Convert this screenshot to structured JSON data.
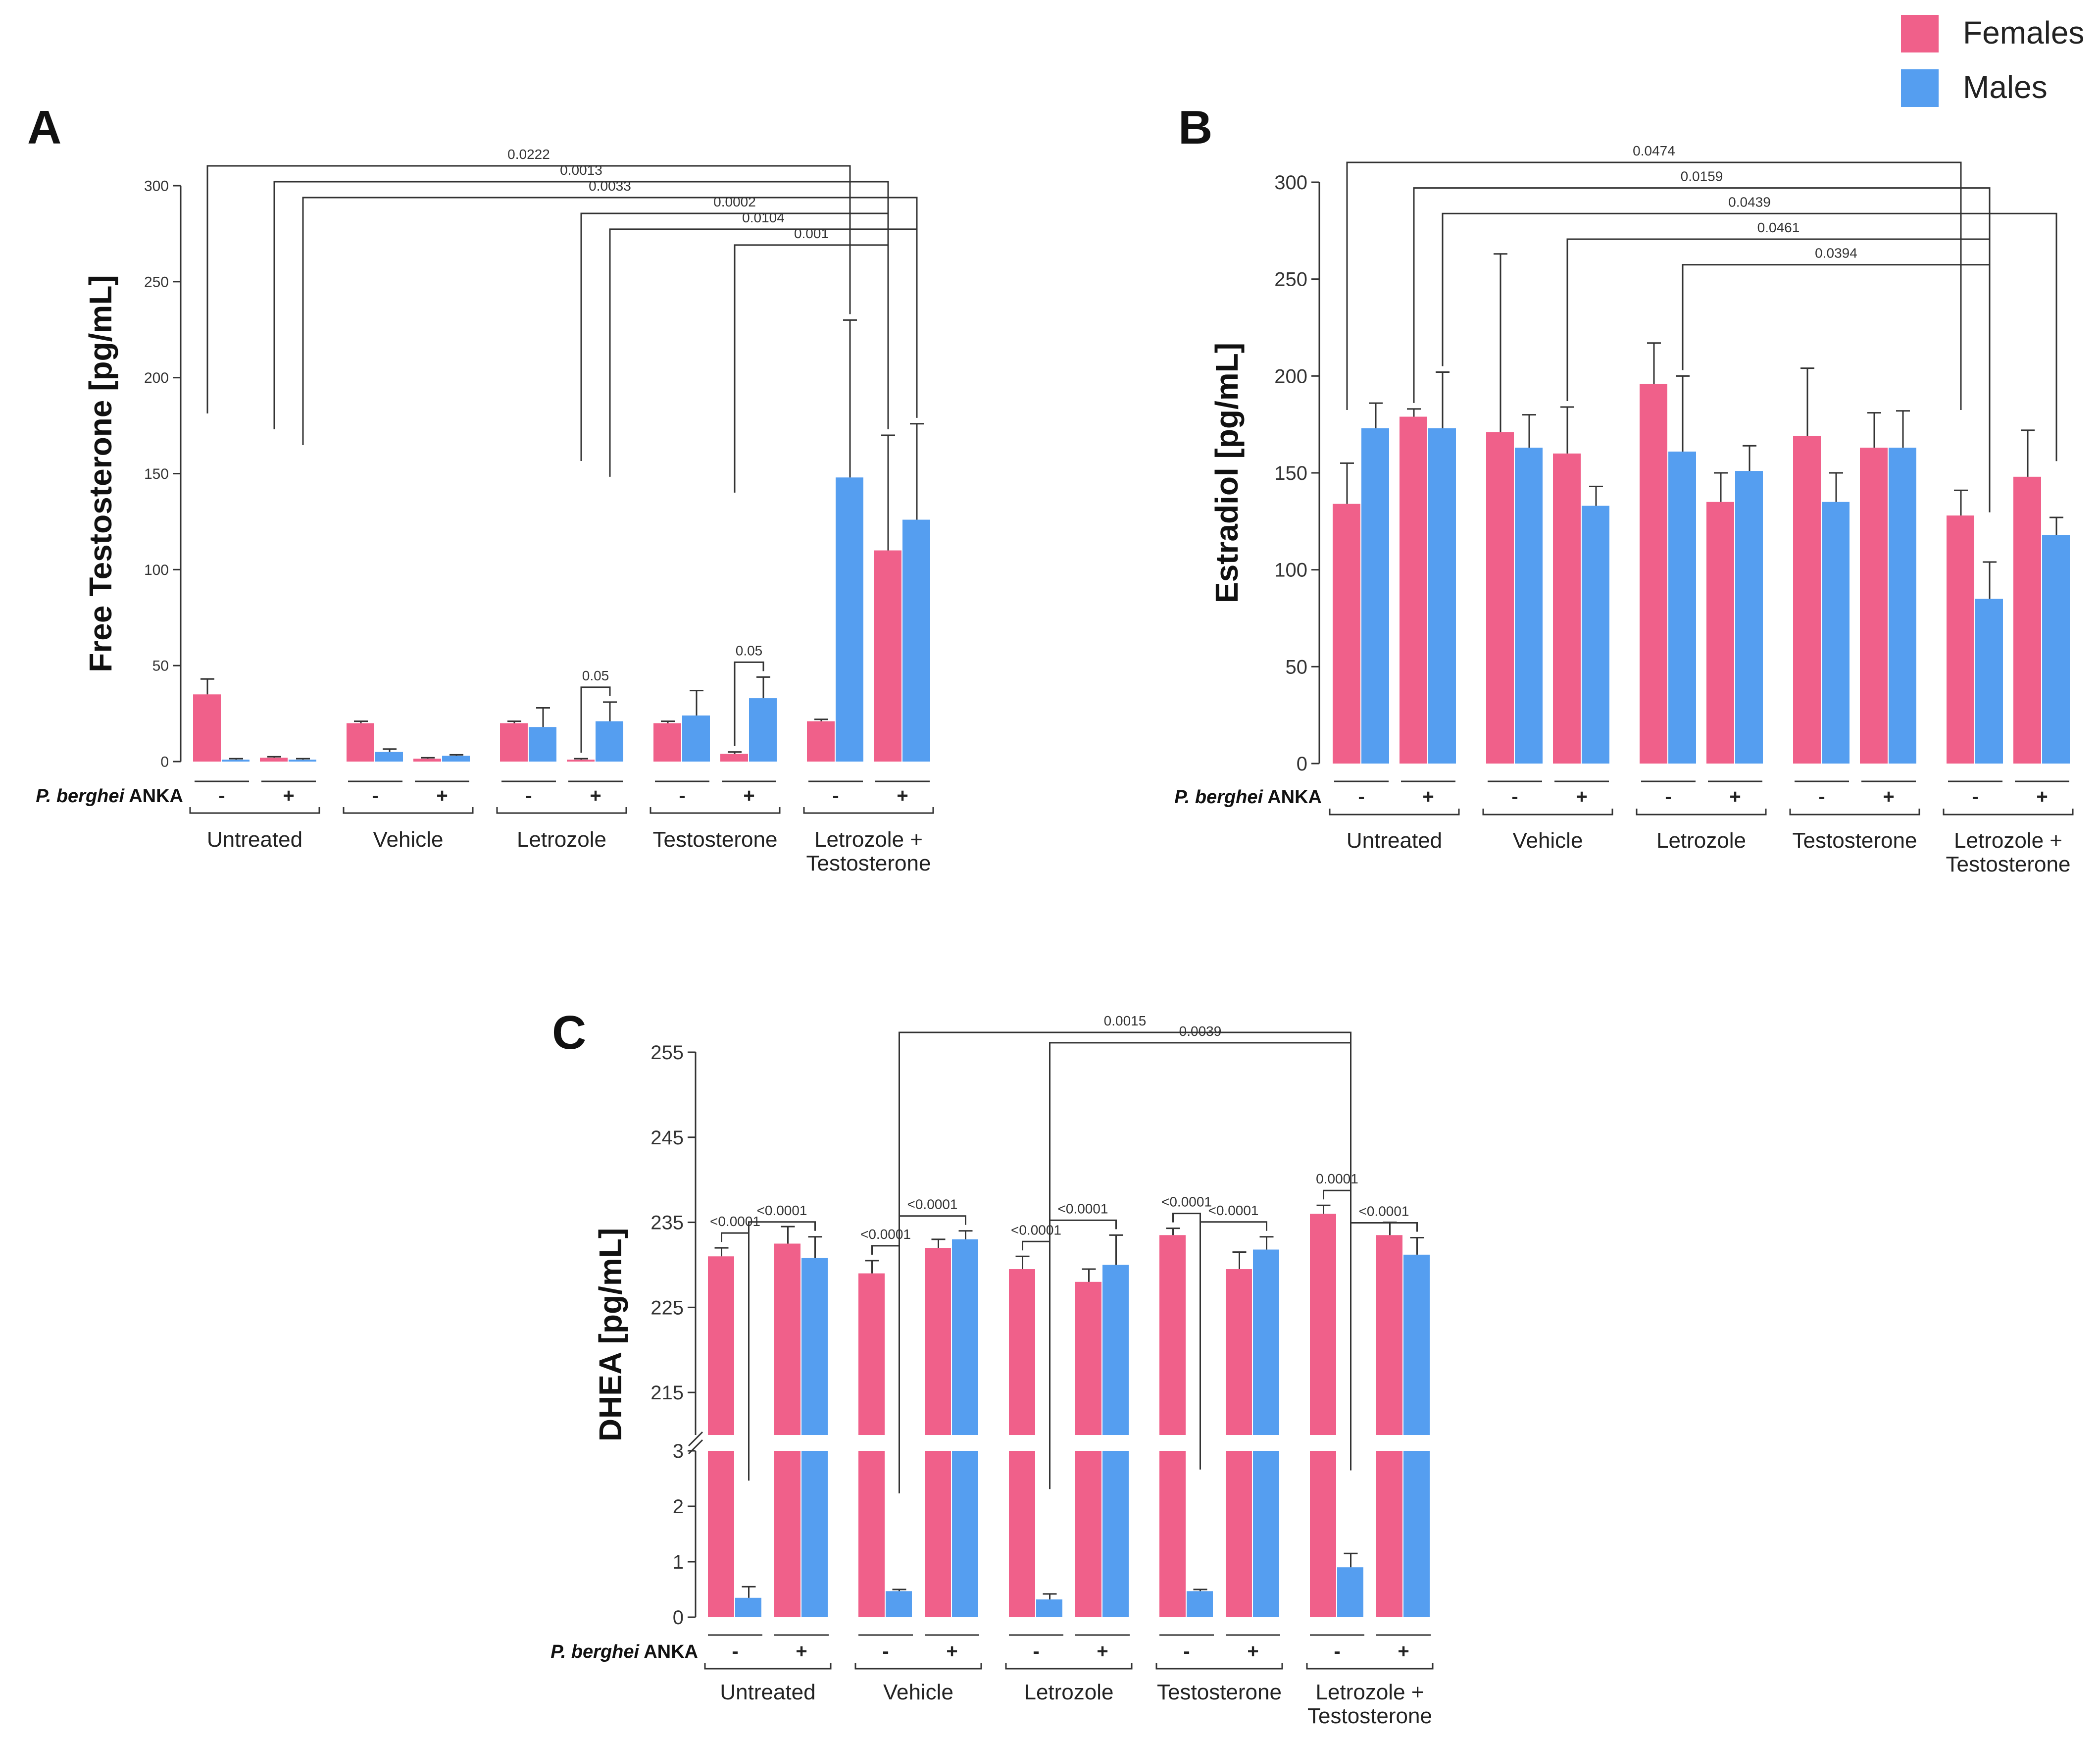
{
  "legend": {
    "entries": [
      {
        "name": "Females",
        "color": "#F0608A"
      },
      {
        "name": "Males",
        "color": "#559EF0"
      }
    ]
  },
  "infection_label": {
    "italic": "P. berghei",
    "normal": " ANKA"
  },
  "chart_data": [
    {
      "type": "bar",
      "panel": "A",
      "ylabel": "Free Testosterone [pg/mL]",
      "ylim": [
        0,
        300
      ],
      "yticks": [
        0,
        50,
        100,
        150,
        200,
        250,
        300
      ],
      "groups": [
        "Untreated",
        "Vehicle",
        "Letrozole",
        "Testosterone",
        "Letrozole +\nTestosterone"
      ],
      "infection_signs": [
        "-",
        "+"
      ],
      "series": [
        {
          "name": "Females",
          "values": [
            35,
            2,
            20,
            1.5,
            20,
            1,
            20,
            4,
            21,
            110
          ],
          "errors": [
            8,
            0.5,
            1,
            0.5,
            1,
            0.5,
            1,
            1,
            1,
            60
          ]
        },
        {
          "name": "Males",
          "values": [
            1,
            1,
            5,
            3,
            18,
            21,
            24,
            33,
            148,
            126
          ],
          "errors": [
            0.5,
            0.5,
            1.5,
            0.5,
            10,
            10,
            13,
            11,
            82,
            50
          ]
        }
      ],
      "comparisons": [
        {
          "p": "0.0222",
          "from": [
            0,
            0
          ],
          "to": [
            8,
            1
          ]
        },
        {
          "p": "0.0013",
          "from": [
            1,
            0
          ],
          "to": [
            9,
            0
          ]
        },
        {
          "p": "0.0033",
          "from": [
            1,
            1
          ],
          "to": [
            9,
            1
          ]
        },
        {
          "p": "0.0002",
          "from": [
            5,
            0
          ],
          "to": [
            9,
            0
          ]
        },
        {
          "p": "0.0104",
          "from": [
            5,
            1
          ],
          "to": [
            9,
            1
          ]
        },
        {
          "p": "0.001",
          "from": [
            7,
            0
          ],
          "to": [
            9,
            0
          ]
        },
        {
          "p": "0.05",
          "from": [
            5,
            0
          ],
          "to": [
            5,
            1
          ]
        },
        {
          "p": "0.05",
          "from": [
            7,
            0
          ],
          "to": [
            7,
            1
          ]
        }
      ]
    },
    {
      "type": "bar",
      "panel": "B",
      "ylabel": "Estradiol [pg/mL]",
      "ylim": [
        0,
        300
      ],
      "yticks": [
        0,
        50,
        100,
        150,
        200,
        250,
        300
      ],
      "groups": [
        "Untreated",
        "Vehicle",
        "Letrozole",
        "Testosterone",
        "Letrozole +\nTestosterone"
      ],
      "infection_signs": [
        "-",
        "+"
      ],
      "series": [
        {
          "name": "Females",
          "values": [
            134,
            179,
            171,
            160,
            196,
            135,
            169,
            163,
            128,
            148
          ],
          "errors": [
            21,
            4,
            92,
            24,
            21,
            15,
            35,
            18,
            13,
            24
          ]
        },
        {
          "name": "Males",
          "values": [
            173,
            173,
            163,
            133,
            161,
            151,
            135,
            163,
            85,
            118
          ],
          "errors": [
            13,
            29,
            17,
            10,
            39,
            13,
            15,
            19,
            19,
            9
          ]
        }
      ],
      "comparisons": [
        {
          "p": "0.0474",
          "from": [
            0,
            0
          ],
          "to": [
            8,
            0
          ]
        },
        {
          "p": "0.0159",
          "from": [
            1,
            0
          ],
          "to": [
            8,
            1
          ]
        },
        {
          "p": "0.0439",
          "from": [
            1,
            1
          ],
          "to": [
            9,
            1
          ]
        },
        {
          "p": "0.0461",
          "from": [
            3,
            0
          ],
          "to": [
            8,
            1
          ]
        },
        {
          "p": "0.0394",
          "from": [
            4,
            1
          ],
          "to": [
            8,
            1
          ]
        }
      ]
    },
    {
      "type": "bar",
      "panel": "C",
      "ylabel": "DHEA [pg/mL]",
      "broken_axis": true,
      "ylim_lower": [
        0,
        3
      ],
      "ylim_upper": [
        210,
        255
      ],
      "yticks_lower": [
        0,
        1,
        2,
        3
      ],
      "yticks_upper": [
        215,
        225,
        235,
        245,
        255
      ],
      "groups": [
        "Untreated",
        "Vehicle",
        "Letrozole",
        "Testosterone",
        "Letrozole +\nTestosterone"
      ],
      "infection_signs": [
        "-",
        "+"
      ],
      "series": [
        {
          "name": "Females",
          "values": [
            231,
            232.5,
            229,
            232,
            229.5,
            228,
            233.5,
            229.5,
            236,
            233.5
          ],
          "errors": [
            1,
            2,
            1.5,
            1,
            1.5,
            1.5,
            0.8,
            2,
            1,
            1.5
          ]
        },
        {
          "name": "Males",
          "values": [
            0.35,
            230.8,
            0.47,
            233,
            0.32,
            230,
            0.47,
            231.8,
            0.9,
            231.2
          ],
          "errors": [
            0.2,
            2.5,
            0.03,
            1,
            0.1,
            3.5,
            0.03,
            1.5,
            0.25,
            2
          ]
        }
      ],
      "comparisons": [
        {
          "p": "0.0015",
          "from": [
            2,
            1
          ],
          "to": [
            8,
            1
          ]
        },
        {
          "p": "0.0039",
          "from": [
            4,
            1
          ],
          "to": [
            8,
            1
          ]
        },
        {
          "p": "<0.0001",
          "from": [
            0,
            0
          ],
          "to": [
            0,
            1
          ]
        },
        {
          "p": "<0.0001",
          "from": [
            0,
            1
          ],
          "to": [
            1,
            1
          ]
        },
        {
          "p": "<0.0001",
          "from": [
            2,
            0
          ],
          "to": [
            2,
            1
          ]
        },
        {
          "p": "<0.0001",
          "from": [
            2,
            1
          ],
          "to": [
            3,
            1
          ]
        },
        {
          "p": "<0.0001",
          "from": [
            4,
            0
          ],
          "to": [
            4,
            1
          ]
        },
        {
          "p": "<0.0001",
          "from": [
            4,
            1
          ],
          "to": [
            5,
            1
          ]
        },
        {
          "p": "<0.0001",
          "from": [
            6,
            0
          ],
          "to": [
            6,
            1
          ]
        },
        {
          "p": "<0.0001",
          "from": [
            6,
            1
          ],
          "to": [
            7,
            1
          ]
        },
        {
          "p": "0.0001",
          "from": [
            8,
            0
          ],
          "to": [
            8,
            1
          ]
        },
        {
          "p": "<0.0001",
          "from": [
            8,
            1
          ],
          "to": [
            9,
            1
          ]
        }
      ]
    }
  ]
}
